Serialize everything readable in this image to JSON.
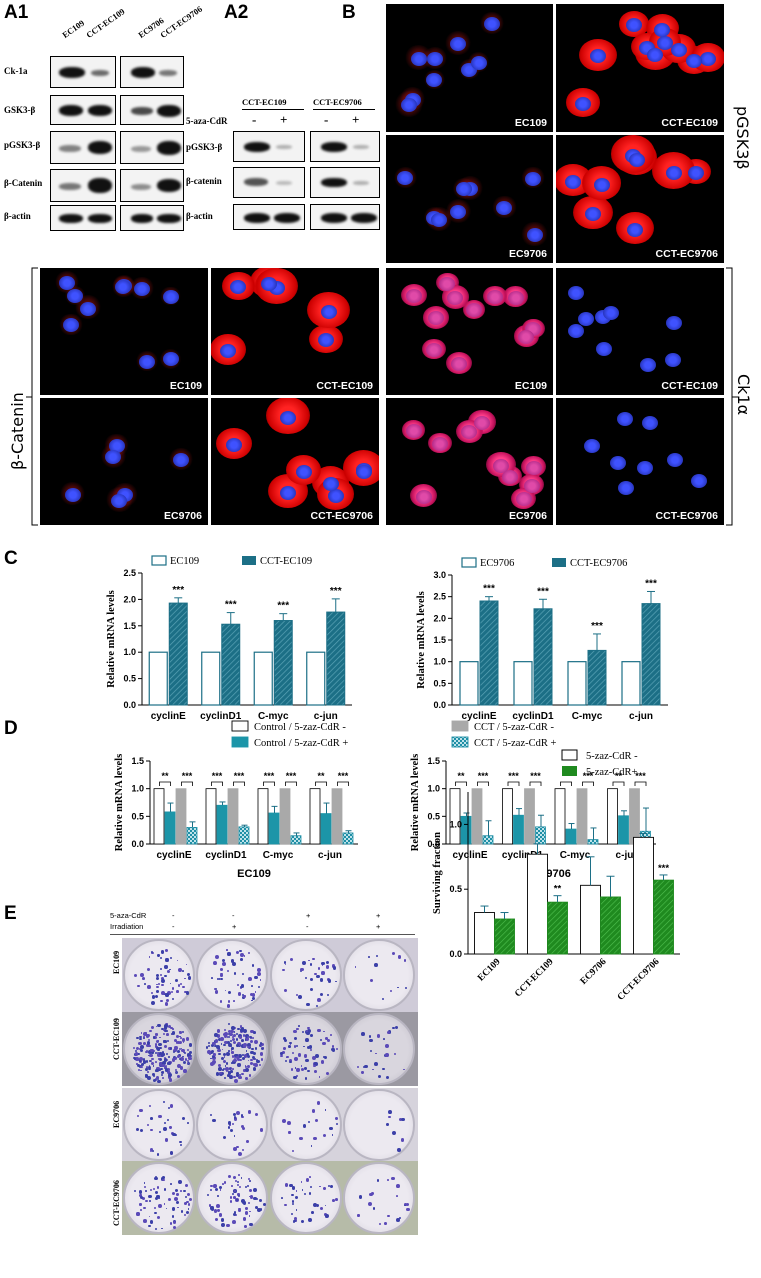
{
  "panel_labels": {
    "a1": "A1",
    "a2": "A2",
    "b": "B",
    "c": "C",
    "d": "D",
    "e": "E"
  },
  "blot_a1": {
    "lanes": [
      "EC109",
      "CCT-EC109",
      "EC9706",
      "CCT-EC9706"
    ],
    "rows": [
      "Ck-1a",
      "GSK3-β",
      "pGSK3-β",
      "β-Catenin",
      "β-actin"
    ]
  },
  "blot_a2": {
    "groups": [
      "CCT-EC109",
      "CCT-EC9706"
    ],
    "treatment_label": "5-aza-CdR",
    "signs": [
      "-",
      "+",
      "-",
      "+"
    ],
    "rows": [
      "pGSK3-β",
      "β-catenin",
      "β-actin"
    ]
  },
  "microscopy": {
    "top_side_label": "pGSK3β",
    "left_side_label": "β-Catenin",
    "right_side_label": "Ck1α",
    "pgsk3b": [
      "EC109",
      "CCT-EC109",
      "EC9706",
      "CCT-EC9706"
    ],
    "bcatenin": [
      "EC109",
      "CCT-EC109",
      "EC9706",
      "CCT-EC9706"
    ],
    "ck1a": [
      "EC109",
      "CCT-EC109",
      "EC9706",
      "CCT-EC9706"
    ]
  },
  "colors": {
    "teal": "#1c6f86",
    "teal_hatch": "#5aa3b6",
    "grey": "#a9a9a9",
    "green": "#1f8a1f",
    "dapi": "#2b3bd6",
    "stain": "#e01414"
  },
  "chart_data": [
    {
      "type": "bar",
      "panel": "C-left",
      "categories": [
        "cyclinE",
        "cyclinD1",
        "C-myc",
        "c-jun"
      ],
      "ylabel": "Relative mRNA levels",
      "ylim": [
        0,
        2.5
      ],
      "yticks": [
        "0.0",
        "0.5",
        "1.0",
        "1.5",
        "2.0",
        "2.5"
      ],
      "series": [
        {
          "name": "EC109",
          "values": [
            1.0,
            1.0,
            1.0,
            1.0
          ],
          "errors": [
            0,
            0,
            0,
            0
          ]
        },
        {
          "name": "CCT-EC109",
          "values": [
            1.93,
            1.53,
            1.6,
            1.76
          ],
          "errors": [
            0.1,
            0.22,
            0.13,
            0.25
          ]
        }
      ],
      "significance": [
        "***",
        "***",
        "***",
        "***"
      ]
    },
    {
      "type": "bar",
      "panel": "C-right",
      "categories": [
        "cyclinE",
        "cyclinD1",
        "C-myc",
        "c-jun"
      ],
      "ylabel": "Relative mRNA levels",
      "ylim": [
        0,
        3.0
      ],
      "yticks": [
        "0.0",
        "0.5",
        "1.0",
        "1.5",
        "2.0",
        "2.5",
        "3.0"
      ],
      "series": [
        {
          "name": "EC9706",
          "values": [
            1.0,
            1.0,
            1.0,
            1.0
          ],
          "errors": [
            0,
            0,
            0,
            0
          ]
        },
        {
          "name": "CCT-EC9706",
          "values": [
            2.4,
            2.22,
            1.26,
            2.34
          ],
          "errors": [
            0.1,
            0.22,
            0.38,
            0.28
          ]
        }
      ],
      "significance": [
        "***",
        "***",
        "***",
        "***"
      ]
    },
    {
      "type": "bar",
      "panel": "D-left",
      "xlabel": "EC109",
      "categories": [
        "cyclinE",
        "cyclinD1",
        "C-myc",
        "c-jun"
      ],
      "ylabel": "Relative mRNA levels",
      "ylim": [
        0,
        1.5
      ],
      "yticks": [
        "0.0",
        "0.5",
        "1.0",
        "1.5"
      ],
      "series": [
        {
          "name": "Control / 5-zaz-CdR -",
          "values": [
            1.0,
            1.0,
            1.0,
            1.0
          ],
          "errors": [
            0,
            0,
            0,
            0
          ]
        },
        {
          "name": "Control / 5-zaz-CdR +",
          "values": [
            0.58,
            0.7,
            0.56,
            0.55
          ],
          "errors": [
            0.16,
            0.06,
            0.12,
            0.19
          ]
        },
        {
          "name": "CCT / 5-zaz-CdR -",
          "values": [
            1.0,
            1.0,
            1.0,
            1.0
          ],
          "errors": [
            0,
            0,
            0,
            0
          ]
        },
        {
          "name": "CCT / 5-zaz-CdR +",
          "values": [
            0.3,
            0.31,
            0.15,
            0.2
          ],
          "errors": [
            0.1,
            0.03,
            0.05,
            0.04
          ]
        }
      ],
      "significance": [
        [
          "**",
          "***"
        ],
        [
          "***",
          "***"
        ],
        [
          "***",
          "***"
        ],
        [
          "**",
          "***"
        ]
      ]
    },
    {
      "type": "bar",
      "panel": "D-right",
      "xlabel": "EC9706",
      "categories": [
        "cyclinE",
        "cyclinD1",
        "C-myc",
        "c-jun"
      ],
      "ylabel": "Relative mRNA levels",
      "ylim": [
        0,
        1.5
      ],
      "yticks": [
        "0.0",
        "0.5",
        "1.0",
        "1.5"
      ],
      "series": [
        {
          "name": "Control / 5-zaz-CdR -",
          "values": [
            1.0,
            1.0,
            1.0,
            1.0
          ],
          "errors": [
            0,
            0,
            0,
            0
          ]
        },
        {
          "name": "Control / 5-zaz-CdR +",
          "values": [
            0.5,
            0.52,
            0.27,
            0.51
          ],
          "errors": [
            0.06,
            0.12,
            0.1,
            0.09
          ]
        },
        {
          "name": "CCT / 5-zaz-CdR -",
          "values": [
            1.0,
            1.0,
            1.0,
            1.0
          ],
          "errors": [
            0,
            0,
            0,
            0
          ]
        },
        {
          "name": "CCT / 5-zaz-CdR +",
          "values": [
            0.15,
            0.31,
            0.08,
            0.23
          ],
          "errors": [
            0.27,
            0.21,
            0.21,
            0.42
          ]
        }
      ],
      "significance": [
        [
          "**",
          "***"
        ],
        [
          "***",
          "***"
        ],
        [
          "**",
          "***"
        ],
        [
          "**",
          "***"
        ]
      ]
    },
    {
      "type": "bar",
      "panel": "E",
      "categories": [
        "EC109",
        "CCT-EC109",
        "EC9706",
        "CCT-EC9706"
      ],
      "ylabel": "Surviving fraction",
      "ylim": [
        0,
        1.25
      ],
      "yticks": [
        "0.0",
        "0.5",
        "1.0"
      ],
      "series": [
        {
          "name": "5-zaz-CdR -",
          "values": [
            0.32,
            0.77,
            0.53,
            0.9
          ],
          "errors": [
            0.05,
            0.08,
            0.22,
            0.03
          ]
        },
        {
          "name": "5-zaz-CdR+",
          "values": [
            0.27,
            0.4,
            0.44,
            0.57
          ],
          "errors": [
            0.05,
            0.05,
            0.16,
            0.04
          ]
        }
      ],
      "significance": [
        "",
        "**",
        "",
        "***"
      ]
    }
  ],
  "clonogenic": {
    "row_header_1": "5-aza-CdR",
    "row_header_2": "Irradiation",
    "aza_signs": [
      "-",
      "-",
      "+",
      "+"
    ],
    "irr_signs": [
      "-",
      "+",
      "-",
      "+"
    ],
    "rows": [
      "EC109",
      "CCT-EC109",
      "EC9706",
      "CCT-EC9706"
    ]
  }
}
